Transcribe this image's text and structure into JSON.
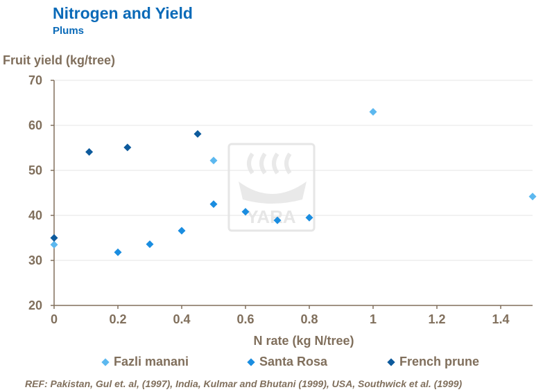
{
  "header": {
    "title": "Nitrogen and Yield",
    "subtitle": "Plums"
  },
  "watermark": {
    "text": "YARA"
  },
  "chart_data": {
    "type": "scatter",
    "title": "Nitrogen and Yield",
    "subtitle": "Plums",
    "xlabel": "N rate (kg N/tree)",
    "ylabel": "Fruit yield (kg/tree)",
    "xlim": [
      0,
      1.5
    ],
    "ylim": [
      20,
      70
    ],
    "xticks": [
      0,
      0.2,
      0.4,
      0.6,
      0.8,
      1,
      1.2,
      1.4
    ],
    "xtick_labels": [
      "0",
      "0.2",
      "0.4",
      "0.6",
      "0.8",
      "1",
      "1.2",
      "1.4"
    ],
    "yticks": [
      20,
      30,
      40,
      50,
      60,
      70
    ],
    "ytick_labels": [
      "20",
      "30",
      "40",
      "50",
      "60",
      "70"
    ],
    "grid": "horizontal",
    "legend_position": "bottom",
    "series": [
      {
        "name": "Fazli manani",
        "color": "#5cb8ef",
        "points": [
          [
            0,
            33.5
          ],
          [
            0.5,
            52.2
          ],
          [
            1.0,
            63.0
          ],
          [
            1.5,
            44.2
          ]
        ]
      },
      {
        "name": "Santa Rosa",
        "color": "#1a8de0",
        "points": [
          [
            0.2,
            31.8
          ],
          [
            0.3,
            33.6
          ],
          [
            0.4,
            36.6
          ],
          [
            0.5,
            42.5
          ],
          [
            0.6,
            40.8
          ],
          [
            0.7,
            38.9
          ],
          [
            0.8,
            39.5
          ]
        ]
      },
      {
        "name": "French prune",
        "color": "#0d5a9c",
        "points": [
          [
            0,
            35.0
          ],
          [
            0.11,
            54.1
          ],
          [
            0.23,
            55.1
          ],
          [
            0.45,
            58.1
          ]
        ]
      }
    ]
  },
  "reference": "REF: Pakistan, Gul et. al, (1997), India, Kulmar and Bhutani (1999), USA, Southwick et al. (1999)"
}
